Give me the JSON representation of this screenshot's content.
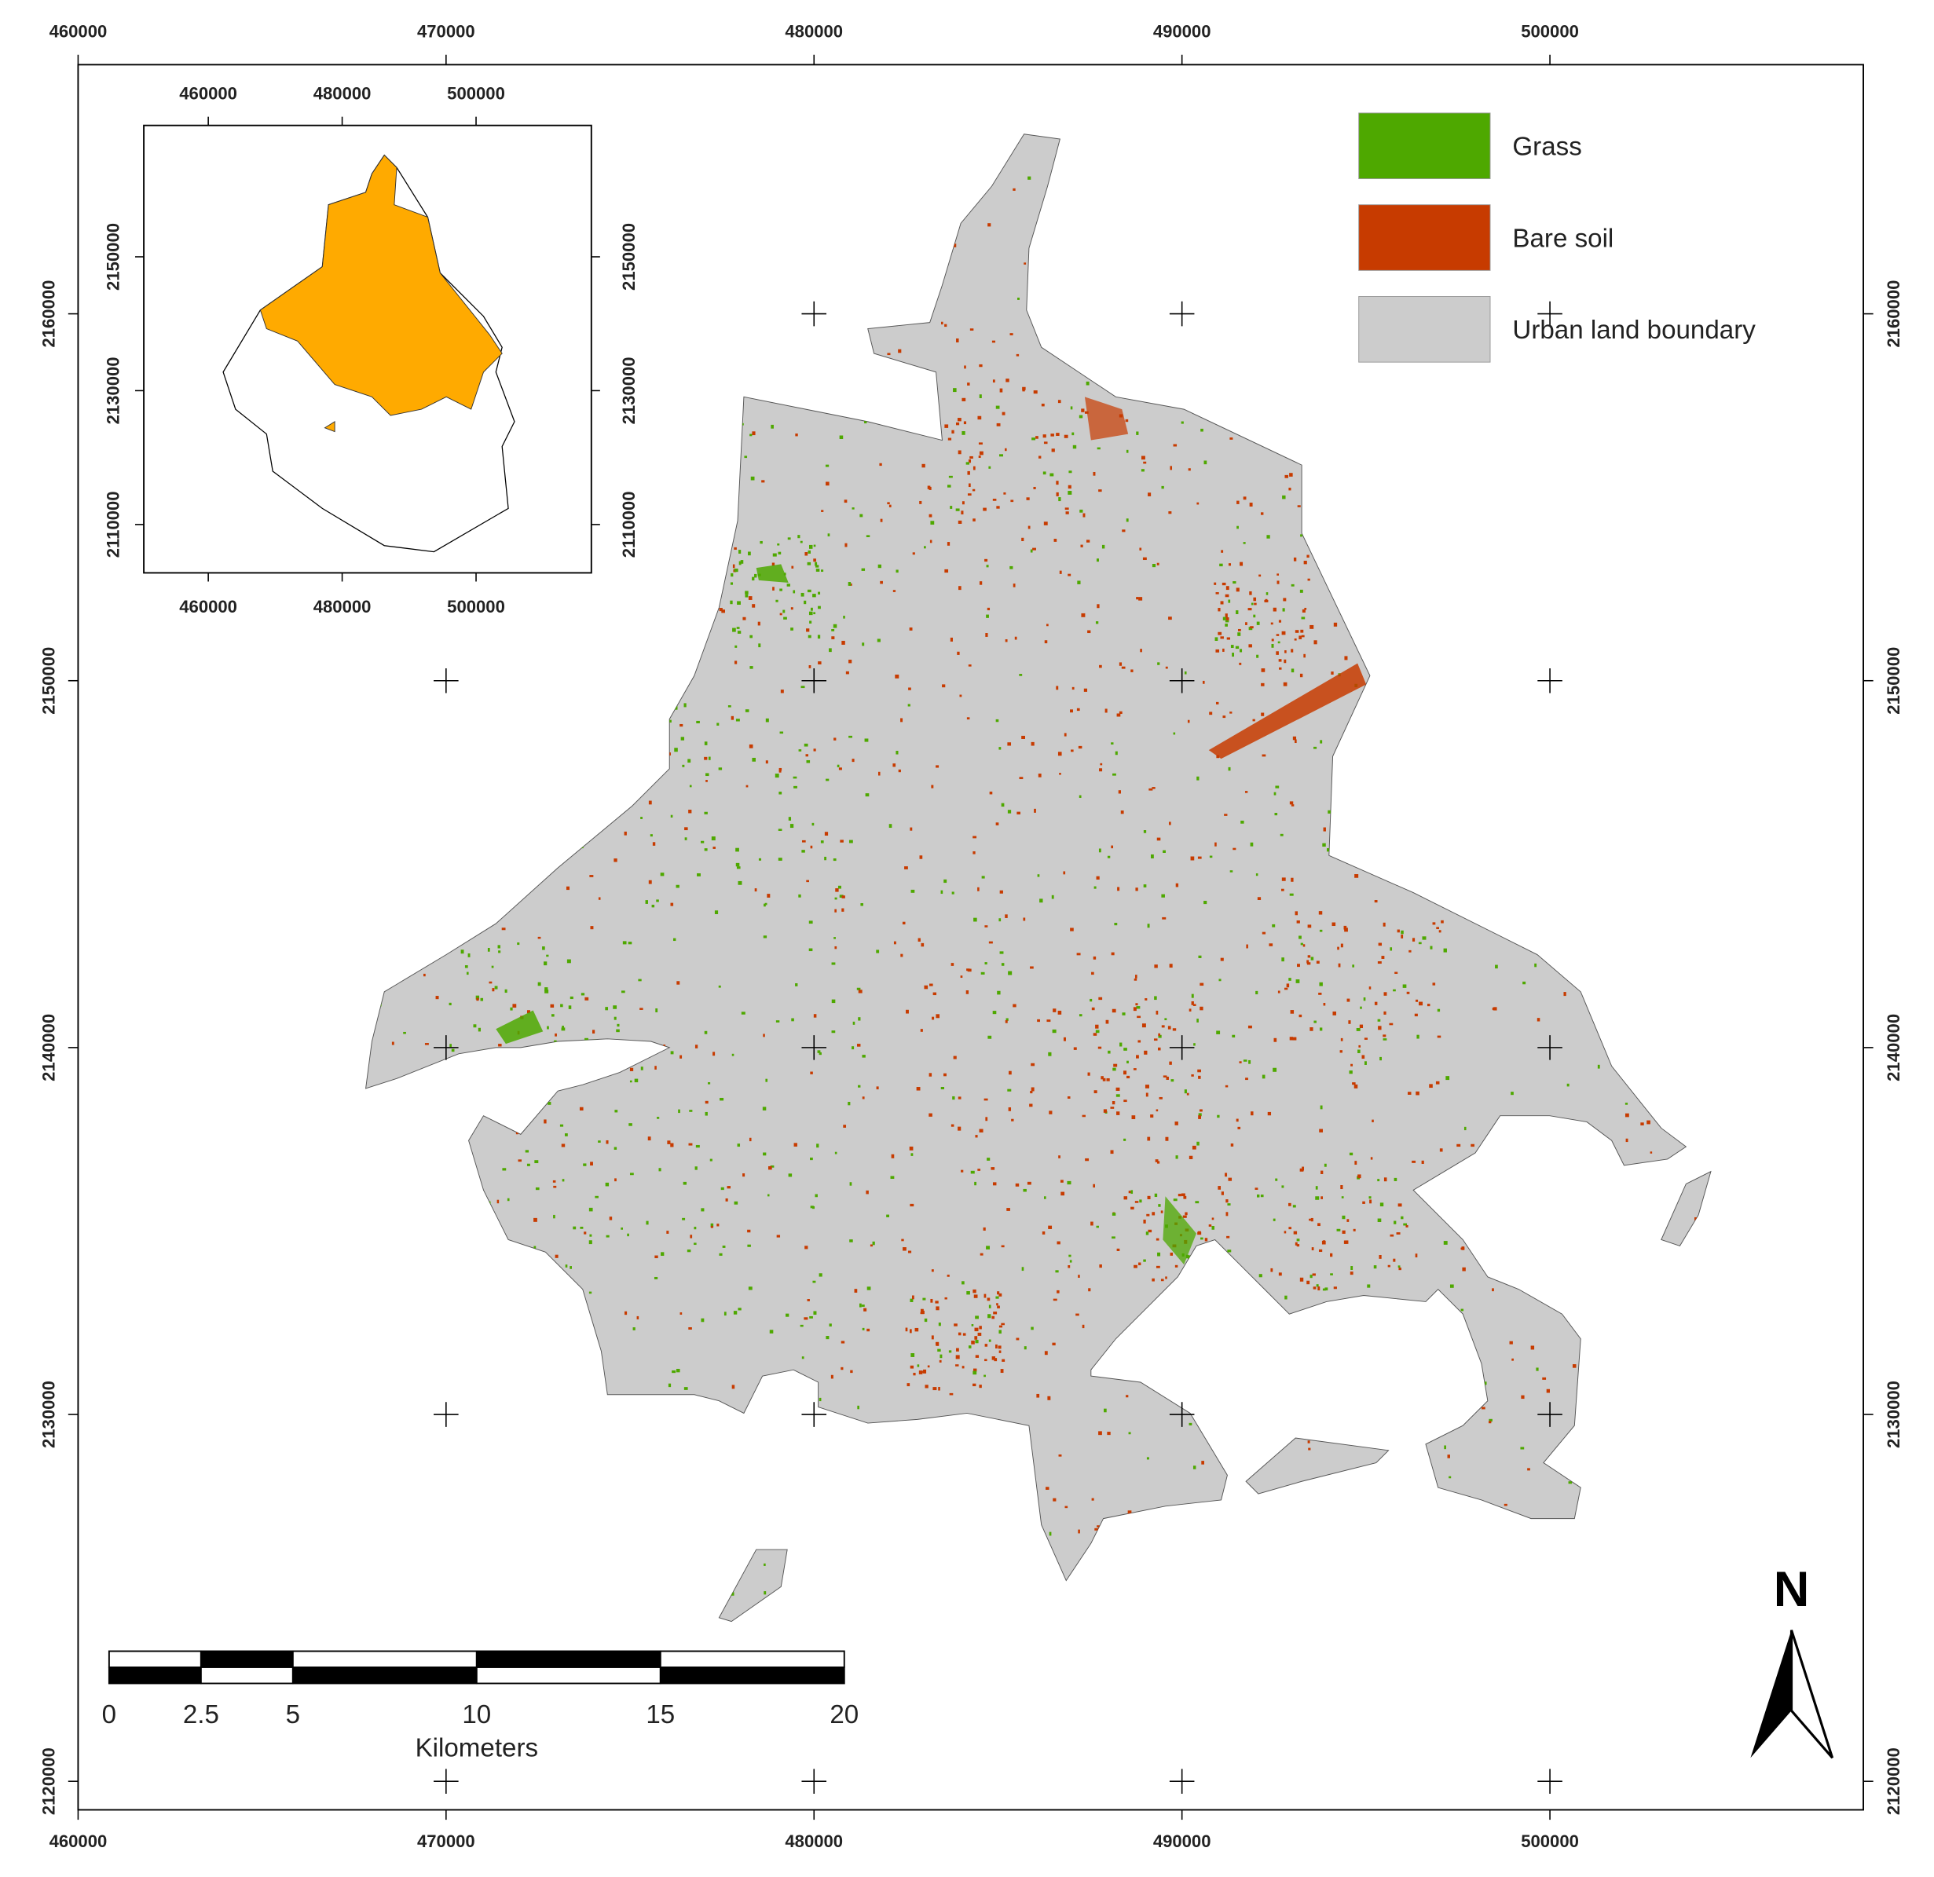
{
  "map": {
    "xticks": [
      460000,
      470000,
      480000,
      490000,
      500000
    ],
    "yticks": [
      2160000,
      2150000,
      2140000,
      2130000,
      2120000
    ],
    "inset": {
      "xticks": [
        460000,
        480000,
        500000
      ],
      "yticks": [
        2150000,
        2130000,
        2110000
      ]
    },
    "legend": [
      {
        "label": "Grass",
        "color": "#4ea800"
      },
      {
        "label": "Bare soil",
        "color": "#c73b00"
      },
      {
        "label": "Urban land boundary",
        "color": "#cccccc"
      }
    ],
    "scale_bar": {
      "ticks": [
        0,
        2.5,
        5,
        10,
        15,
        20
      ],
      "unit": "Kilometers"
    },
    "north": "N"
  }
}
